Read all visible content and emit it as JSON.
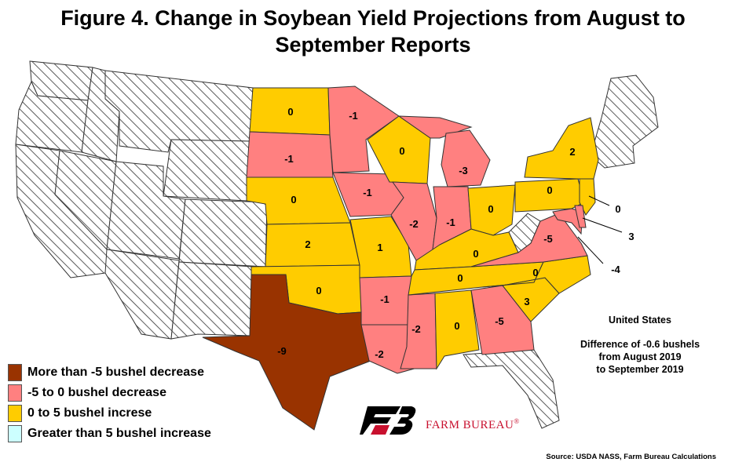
{
  "title_line1": "Figure 4. Change in Soybean Yield Projections from August to",
  "title_line2": "September Reports",
  "colors": {
    "more_than_5_decrease": "#993300",
    "decrease_0_5": "#ff8080",
    "increase_0_5": "#ffcc00",
    "greater_than_5_increase": "#ccffff",
    "no_data": "hatched"
  },
  "states": {
    "ND": "0",
    "MN": "-1",
    "SD": "-1",
    "WI": "0",
    "MI": "-3",
    "NE": "0",
    "IA": "-1",
    "IL": "-2",
    "IN": "-1",
    "OH": "0",
    "KS": "2",
    "MO": "1",
    "KY": "0",
    "TN": "0",
    "OK": "0",
    "AR": "-1",
    "TX": "-9",
    "LA": "-2",
    "MS": "-2",
    "AL": "0",
    "GA": "-5",
    "SC": "3",
    "NC": "0",
    "VA": "-5",
    "PA": "0",
    "NY": "2",
    "NJ": "0",
    "DE": "3",
    "MD": "-4"
  },
  "legend": [
    {
      "label": "More than -5 bushel decrease",
      "color": "#993300"
    },
    {
      "label": "-5 to 0 bushel decrease",
      "color": "#ff8080"
    },
    {
      "label": "0 to 5 bushel increse",
      "color": "#ffcc00"
    },
    {
      "label": "Greater than 5 bushel increase",
      "color": "#ccffff"
    }
  ],
  "summary": {
    "heading": "United States",
    "line1": "Difference  of  -0.6 bushels",
    "line2": "from August 2019",
    "line3": "to September 2019"
  },
  "logo_text": "FARM BUREAU",
  "logo_mark": "®",
  "source": "Source: USDA NASS, Farm Bureau Calculations"
}
